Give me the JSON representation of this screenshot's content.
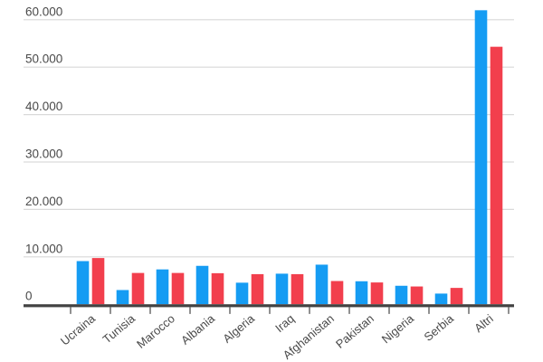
{
  "chart_data": {
    "type": "bar",
    "title": "",
    "categories": [
      "Ucraina",
      "Tunisia",
      "Marocco",
      "Albania",
      "Algeria",
      "Iraq",
      "Afghanistan",
      "Pakistan",
      "Nigeria",
      "Serbia",
      "Altri"
    ],
    "series": [
      {
        "name": "blue",
        "color": "#159CF3",
        "values": [
          9100,
          3000,
          7350,
          8100,
          4550,
          6450,
          8350,
          4850,
          3900,
          2250,
          62000
        ]
      },
      {
        "name": "red",
        "color": "#F23F4D",
        "values": [
          9750,
          6600,
          6600,
          6550,
          6350,
          6350,
          4900,
          4600,
          3750,
          3450,
          54300
        ]
      }
    ],
    "y_axis": {
      "tick_values": [
        0,
        10000,
        20000,
        30000,
        40000,
        50000,
        60000
      ],
      "tick_labels": [
        "0",
        "10.000",
        "20.000",
        "30.000",
        "40.000",
        "50.000",
        "60.000"
      ],
      "range": [
        0,
        62500
      ]
    },
    "x_axis": {
      "label_rotation_deg": -40
    },
    "grid": true,
    "legend": "none",
    "colors": {
      "grid": "#D9D9D9",
      "axis": "#424242",
      "tick": "#757575",
      "label": "#4A4A4A",
      "background": "#FFFFFF"
    }
  }
}
